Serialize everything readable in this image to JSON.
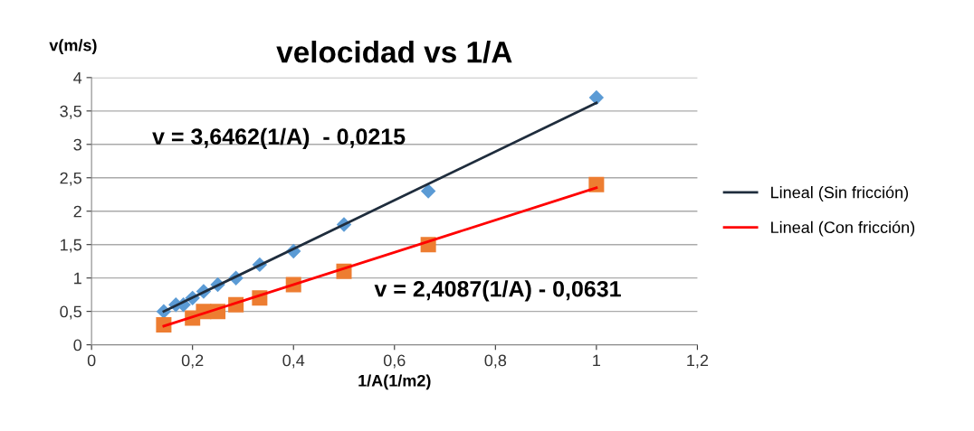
{
  "chart_data": {
    "type": "scatter",
    "title": "velocidad vs 1/A",
    "xlabel": "1/A(1/m2)",
    "ylabel": "v(m/s)",
    "series": [
      {
        "color": "#5b9bd5",
        "marker": "diamond",
        "x": [
          0.143,
          0.167,
          0.182,
          0.2,
          0.222,
          0.25,
          0.286,
          0.333,
          0.4,
          0.5,
          0.667,
          1
        ],
        "values": [
          0.5,
          0.6,
          0.6,
          0.7,
          0.8,
          0.9,
          1.0,
          1.2,
          1.4,
          1.8,
          2.3,
          3.7
        ]
      },
      {
        "color": "#ed7d31",
        "marker": "square",
        "x": [
          0.143,
          0.182,
          0.2,
          0.222,
          0.25,
          0.286,
          0.333,
          0.4,
          0.5,
          0.667,
          1
        ],
        "values": [
          0.3,
          null,
          0.4,
          0.5,
          0.5,
          0.6,
          0.7,
          0.9,
          1.1,
          1.5,
          2.4
        ]
      },
      {
        "type": "line",
        "name": "Lineal (Sin fricción)",
        "color": "#1f2d3d",
        "x": [
          0.143,
          1
        ],
        "values": [
          0.5,
          3.62
        ]
      },
      {
        "type": "line",
        "name": "Lineal (Con fricción)",
        "color": "#ff0000",
        "x": [
          0.143,
          1
        ],
        "values": [
          0.28,
          2.35
        ]
      }
    ],
    "annotations": [
      "v = 3,6462(1/A)  - 0,0215",
      "v = 2,4087(1/A) - 0,0631"
    ],
    "xlim": [
      0,
      1.2
    ],
    "xticks": [
      0,
      {
        "value": 0.2,
        "label": "0,2"
      },
      {
        "value": 0.4,
        "label": "0,4"
      },
      {
        "value": 0.6,
        "label": "0,6"
      },
      {
        "value": 0.8,
        "label": "0,8"
      },
      1,
      {
        "value": 1.2,
        "label": "1,2"
      }
    ],
    "ylim": [
      0,
      4
    ],
    "yticks": [
      0,
      {
        "value": 0.5,
        "label": "0,5"
      },
      1,
      {
        "value": 1.5,
        "label": "1,5"
      },
      2,
      {
        "value": 2.5,
        "label": "2,5"
      },
      3,
      {
        "value": 3.5,
        "label": "3,5"
      },
      4
    ],
    "grid": "y",
    "legend": "right"
  }
}
